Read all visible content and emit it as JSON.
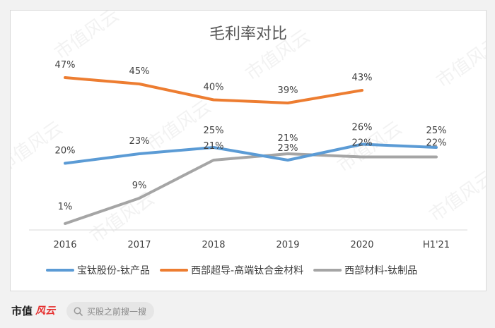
{
  "chart_data": {
    "type": "line",
    "title": "毛利率对比",
    "categories": [
      "2016",
      "2017",
      "2018",
      "2019",
      "2020",
      "H1'21"
    ],
    "series": [
      {
        "name": "宝钛股份-钛产品",
        "color": "#5b9bd5",
        "values": [
          20,
          23,
          25,
          21,
          26,
          25
        ],
        "labels": [
          "20%",
          "23%",
          "25%",
          "21%",
          "26%",
          "25%"
        ]
      },
      {
        "name": "西部超导-高端钛合金材料",
        "color": "#ed7d31",
        "values": [
          47,
          45,
          40,
          39,
          43,
          null
        ],
        "labels": [
          "47%",
          "45%",
          "40%",
          "39%",
          "43%",
          null
        ]
      },
      {
        "name": "西部材料-钛制品",
        "color": "#a5a5a5",
        "values": [
          1,
          9,
          21,
          23,
          22,
          22
        ],
        "labels": [
          "1%",
          "9%",
          "21%",
          "23%",
          "22%",
          "22%"
        ]
      }
    ],
    "ylim": [
      -1,
      57
    ],
    "grid": false,
    "legend": "bottom"
  },
  "watermark": "市值风云",
  "footer": {
    "brand": "市值",
    "brand_script": "风云",
    "search_placeholder": "买股之前搜一搜"
  }
}
